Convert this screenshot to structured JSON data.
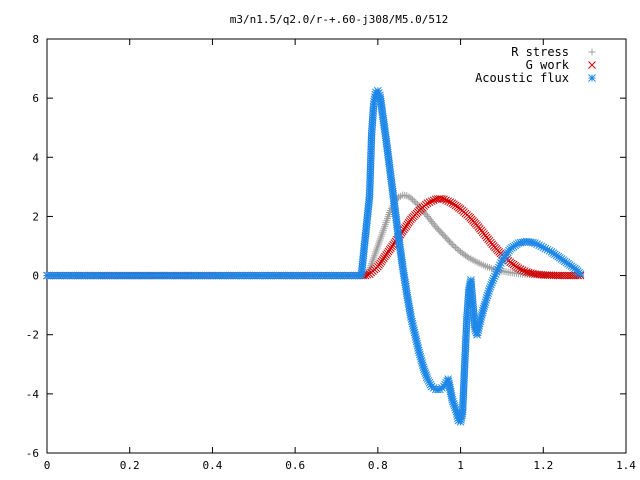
{
  "chart_data": {
    "type": "scatter",
    "title": "m3/n1.5/q2.0/r-+.60-j308/M5.0/512",
    "xlabel": "",
    "ylabel": "",
    "xlim": [
      0,
      1.4
    ],
    "ylim": [
      -6,
      8
    ],
    "x_ticks": [
      "0",
      "0.2",
      "0.4",
      "0.6",
      "0.8",
      "1",
      "1.2",
      "1.4"
    ],
    "y_ticks": [
      "-6",
      "-4",
      "-2",
      "0",
      "2",
      "4",
      "6",
      "8"
    ],
    "legend_position": "top-right",
    "grid": false,
    "series": [
      {
        "name": "R stress",
        "marker": "plus",
        "color": "#a0a0a0",
        "points": [
          [
            0,
            0
          ],
          [
            0.5,
            0
          ],
          [
            0.77,
            0
          ],
          [
            0.78,
            0.2
          ],
          [
            0.79,
            0.6
          ],
          [
            0.8,
            1.0
          ],
          [
            0.81,
            1.4
          ],
          [
            0.82,
            1.8
          ],
          [
            0.83,
            2.2
          ],
          [
            0.84,
            2.5
          ],
          [
            0.85,
            2.65
          ],
          [
            0.86,
            2.72
          ],
          [
            0.87,
            2.7
          ],
          [
            0.88,
            2.62
          ],
          [
            0.9,
            2.35
          ],
          [
            0.92,
            2.0
          ],
          [
            0.94,
            1.65
          ],
          [
            0.96,
            1.35
          ],
          [
            0.98,
            1.05
          ],
          [
            1.0,
            0.8
          ],
          [
            1.02,
            0.6
          ],
          [
            1.04,
            0.45
          ],
          [
            1.06,
            0.32
          ],
          [
            1.08,
            0.22
          ],
          [
            1.1,
            0.15
          ],
          [
            1.12,
            0.1
          ],
          [
            1.15,
            0.05
          ],
          [
            1.2,
            0.02
          ],
          [
            1.25,
            0.01
          ],
          [
            1.29,
            0.0
          ]
        ]
      },
      {
        "name": "G work",
        "marker": "cross",
        "color": "#d00000",
        "points": [
          [
            0,
            0
          ],
          [
            0.5,
            0
          ],
          [
            0.77,
            0
          ],
          [
            0.78,
            0.05
          ],
          [
            0.8,
            0.3
          ],
          [
            0.82,
            0.7
          ],
          [
            0.84,
            1.1
          ],
          [
            0.86,
            1.5
          ],
          [
            0.88,
            1.9
          ],
          [
            0.9,
            2.2
          ],
          [
            0.92,
            2.45
          ],
          [
            0.94,
            2.58
          ],
          [
            0.95,
            2.6
          ],
          [
            0.96,
            2.58
          ],
          [
            0.98,
            2.45
          ],
          [
            1.0,
            2.25
          ],
          [
            1.02,
            2.0
          ],
          [
            1.04,
            1.7
          ],
          [
            1.06,
            1.35
          ],
          [
            1.08,
            1.0
          ],
          [
            1.1,
            0.7
          ],
          [
            1.12,
            0.45
          ],
          [
            1.14,
            0.25
          ],
          [
            1.16,
            0.12
          ],
          [
            1.18,
            0.05
          ],
          [
            1.2,
            0.02
          ],
          [
            1.24,
            0.0
          ],
          [
            1.29,
            0.0
          ]
        ]
      },
      {
        "name": "Acoustic flux",
        "marker": "star",
        "color": "#1f88e8",
        "points": [
          [
            0,
            0
          ],
          [
            0.2,
            0
          ],
          [
            0.4,
            0
          ],
          [
            0.6,
            0
          ],
          [
            0.76,
            0
          ],
          [
            0.78,
            2.7
          ],
          [
            0.785,
            4.8
          ],
          [
            0.79,
            5.8
          ],
          [
            0.795,
            6.2
          ],
          [
            0.8,
            6.25
          ],
          [
            0.805,
            6.1
          ],
          [
            0.81,
            5.6
          ],
          [
            0.82,
            4.6
          ],
          [
            0.83,
            3.5
          ],
          [
            0.84,
            2.4
          ],
          [
            0.85,
            1.3
          ],
          [
            0.86,
            0.3
          ],
          [
            0.87,
            -0.6
          ],
          [
            0.88,
            -1.4
          ],
          [
            0.89,
            -2.0
          ],
          [
            0.9,
            -2.6
          ],
          [
            0.91,
            -3.1
          ],
          [
            0.92,
            -3.5
          ],
          [
            0.93,
            -3.75
          ],
          [
            0.94,
            -3.85
          ],
          [
            0.95,
            -3.85
          ],
          [
            0.96,
            -3.75
          ],
          [
            0.97,
            -3.5
          ],
          [
            0.98,
            -4.2
          ],
          [
            0.99,
            -4.6
          ],
          [
            0.995,
            -4.9
          ],
          [
            1.0,
            -4.95
          ],
          [
            1.005,
            -4.6
          ],
          [
            1.01,
            -3.0
          ],
          [
            1.015,
            -1.5
          ],
          [
            1.02,
            -0.5
          ],
          [
            1.025,
            -0.15
          ],
          [
            1.03,
            -1.0
          ],
          [
            1.035,
            -1.8
          ],
          [
            1.04,
            -2.0
          ],
          [
            1.05,
            -1.4
          ],
          [
            1.06,
            -0.9
          ],
          [
            1.07,
            -0.45
          ],
          [
            1.08,
            -0.1
          ],
          [
            1.09,
            0.2
          ],
          [
            1.1,
            0.5
          ],
          [
            1.12,
            0.9
          ],
          [
            1.14,
            1.1
          ],
          [
            1.16,
            1.15
          ],
          [
            1.18,
            1.1
          ],
          [
            1.2,
            0.95
          ],
          [
            1.22,
            0.8
          ],
          [
            1.24,
            0.6
          ],
          [
            1.26,
            0.4
          ],
          [
            1.28,
            0.2
          ],
          [
            1.29,
            0.05
          ]
        ]
      }
    ]
  }
}
